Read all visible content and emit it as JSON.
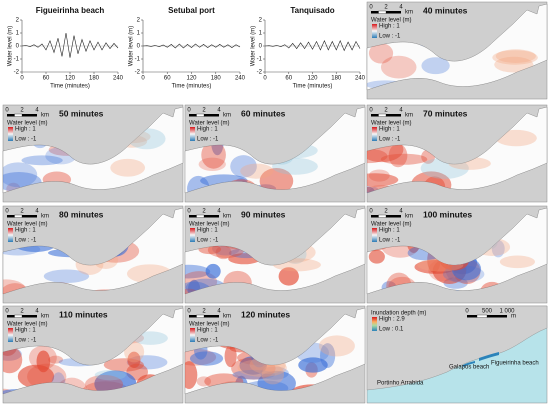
{
  "chart_data": [
    {
      "type": "line",
      "title": "Figueirinha beach",
      "xlabel": "Time (minutes)",
      "ylabel": "Water level (m)",
      "color": "#222222",
      "x": [
        0,
        10,
        20,
        30,
        40,
        50,
        60,
        70,
        80,
        90,
        100,
        110,
        120,
        130,
        140,
        150,
        160,
        170,
        180,
        190,
        200,
        210,
        220,
        230,
        240
      ],
      "values": [
        0,
        0.05,
        -0.05,
        0.1,
        -0.1,
        0.15,
        -0.3,
        0.4,
        -0.5,
        0.6,
        -0.8,
        1.0,
        -0.9,
        0.8,
        -0.6,
        0.5,
        -0.4,
        0.4,
        -0.3,
        0.3,
        -0.3,
        0.25,
        -0.2,
        0.2,
        -0.15
      ],
      "xlim": [
        0,
        240
      ],
      "xticks": [
        0,
        60,
        120,
        180,
        240
      ],
      "ylim": [
        -2,
        2
      ],
      "yticks": [
        -2,
        -1,
        0,
        1,
        2
      ]
    },
    {
      "type": "line",
      "title": "Setubal port",
      "xlabel": "Time (minutes)",
      "ylabel": "Water level (m)",
      "color": "#222222",
      "x": [
        0,
        10,
        20,
        30,
        40,
        50,
        60,
        70,
        80,
        90,
        100,
        110,
        120,
        130,
        140,
        150,
        160,
        170,
        180,
        190,
        200,
        210,
        220,
        230,
        240
      ],
      "values": [
        0,
        0.02,
        -0.03,
        0.05,
        -0.05,
        0.08,
        -0.1,
        0.12,
        -0.15,
        0.15,
        -0.15,
        0.12,
        -0.12,
        0.15,
        -0.1,
        0.12,
        -0.12,
        0.1,
        -0.1,
        0.12,
        -0.1,
        0.1,
        -0.12,
        0.1,
        -0.08
      ],
      "xlim": [
        0,
        240
      ],
      "xticks": [
        0,
        60,
        120,
        180,
        240
      ],
      "ylim": [
        -2,
        2
      ],
      "yticks": [
        -2,
        -1,
        0,
        1,
        2
      ]
    },
    {
      "type": "line",
      "title": "Tanquisado",
      "xlabel": "Time (minutes)",
      "ylabel": "Water level (m)",
      "color": "#222222",
      "x": [
        0,
        10,
        20,
        30,
        40,
        50,
        60,
        70,
        80,
        90,
        100,
        110,
        120,
        130,
        140,
        150,
        160,
        170,
        180,
        190,
        200,
        210,
        220,
        230,
        240
      ],
      "values": [
        0,
        0.02,
        -0.02,
        0.05,
        -0.05,
        0.1,
        -0.15,
        0.2,
        -0.2,
        0.25,
        -0.2,
        0.3,
        -0.25,
        0.35,
        -0.3,
        0.4,
        -0.3,
        0.35,
        -0.3,
        0.4,
        -0.35,
        0.3,
        -0.3,
        0.35,
        -0.2
      ],
      "xlim": [
        0,
        240
      ],
      "xticks": [
        0,
        60,
        120,
        180,
        240
      ],
      "ylim": [
        -2,
        2
      ],
      "yticks": [
        -2,
        -1,
        0,
        1,
        2
      ]
    }
  ],
  "maps": [
    {
      "title": "40 minutes",
      "scale": [
        "0",
        "2",
        "4"
      ],
      "unit": "km",
      "legend": {
        "title": "Water level (m)",
        "high": "High : 1",
        "low": "Low : -1"
      }
    },
    {
      "title": "50 minutes",
      "scale": [
        "0",
        "2",
        "4"
      ],
      "unit": "km",
      "legend": {
        "title": "Water level (m)",
        "high": "High : 1",
        "low": "Low : -1"
      }
    },
    {
      "title": "60 minutes",
      "scale": [
        "0",
        "2",
        "4"
      ],
      "unit": "km",
      "legend": {
        "title": "Water level (m)",
        "high": "High : 1",
        "low": "Low : -1"
      }
    },
    {
      "title": "70 minutes",
      "scale": [
        "0",
        "2",
        "4"
      ],
      "unit": "km",
      "legend": {
        "title": "Water level (m)",
        "high": "High : 1",
        "low": "Low : -1"
      }
    },
    {
      "title": "80 minutes",
      "scale": [
        "0",
        "2",
        "4"
      ],
      "unit": "km",
      "legend": {
        "title": "Water level (m)",
        "high": "High : 1",
        "low": "Low : -1"
      }
    },
    {
      "title": "90 minutes",
      "scale": [
        "0",
        "2",
        "4"
      ],
      "unit": "km",
      "legend": {
        "title": "Water level (m)",
        "high": "High : 1",
        "low": "Low : -1"
      }
    },
    {
      "title": "100 minutes",
      "scale": [
        "0",
        "2",
        "4"
      ],
      "unit": "km",
      "legend": {
        "title": "Water level (m)",
        "high": "High : 1",
        "low": "Low : -1"
      }
    },
    {
      "title": "110 minutes",
      "scale": [
        "0",
        "2",
        "4"
      ],
      "unit": "km",
      "legend": {
        "title": "Water level (m)",
        "high": "High : 1",
        "low": "Low : -1"
      }
    },
    {
      "title": "120 minutes",
      "scale": [
        "0",
        "2",
        "4"
      ],
      "unit": "km",
      "legend": {
        "title": "Water level (m)",
        "high": "High : 1",
        "low": "Low : -1"
      }
    }
  ],
  "inundation_map": {
    "scale": [
      "0",
      "500",
      "1 000"
    ],
    "unit": "m",
    "legend": {
      "title": "Inundation depth (m)",
      "high": "High : 2.9",
      "low": "Low : 0.1"
    },
    "places": [
      "Galapos beach",
      "Figueirinha beach",
      "Portinho Arrabida"
    ]
  }
}
